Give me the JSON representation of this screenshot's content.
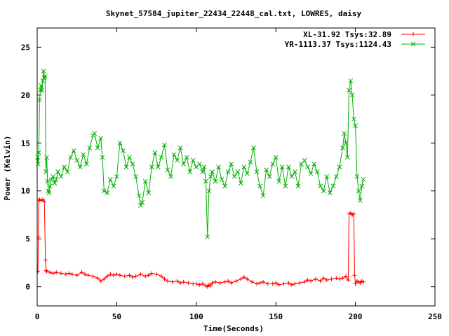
{
  "chart_data": {
    "type": "line",
    "title": "Skynet_57584_jupiter_22434_22448_cal.txt, LOWRES, daisy",
    "xlabel": "Time(Seconds)",
    "ylabel": "Power (Kelvin)",
    "xlim": [
      0,
      250
    ],
    "ylim": [
      -2,
      27
    ],
    "xticks": [
      0,
      50,
      100,
      150,
      200,
      250
    ],
    "yticks": [
      0,
      5,
      10,
      15,
      20,
      25
    ],
    "grid": false,
    "legend_position": "top-right",
    "series": [
      {
        "name": "XL-31.92 Tsys:32.89",
        "color": "#ff0000",
        "marker": "plus",
        "x": [
          0.5,
          0.7,
          1.0,
          1.5,
          2.5,
          3.5,
          4.5,
          5.2,
          5.6,
          6.0,
          8,
          10,
          12,
          15,
          18,
          20,
          22,
          25,
          28,
          30,
          32,
          35,
          38,
          40,
          42,
          44,
          46,
          48,
          50,
          52,
          55,
          58,
          60,
          62,
          65,
          68,
          70,
          72,
          75,
          78,
          80,
          82,
          85,
          88,
          90,
          92,
          95,
          98,
          100,
          102,
          104,
          106,
          107,
          108,
          109,
          110,
          112,
          115,
          118,
          120,
          122,
          125,
          128,
          130,
          132,
          135,
          138,
          140,
          142,
          145,
          148,
          150,
          152,
          155,
          158,
          160,
          162,
          165,
          168,
          170,
          172,
          175,
          178,
          180,
          182,
          185,
          188,
          190,
          192,
          194,
          195.5,
          196,
          197,
          198,
          199,
          199.5,
          200,
          201,
          202,
          203,
          204,
          205
        ],
        "y": [
          1.6,
          5.2,
          9.0,
          9.1,
          9.0,
          9.1,
          8.9,
          2.8,
          1.7,
          1.6,
          1.5,
          1.4,
          1.5,
          1.4,
          1.3,
          1.4,
          1.3,
          1.2,
          1.5,
          1.3,
          1.2,
          1.1,
          0.9,
          0.6,
          0.8,
          1.1,
          1.3,
          1.2,
          1.3,
          1.2,
          1.1,
          1.2,
          1.0,
          1.1,
          1.3,
          1.1,
          1.2,
          1.4,
          1.3,
          1.1,
          0.8,
          0.6,
          0.5,
          0.6,
          0.4,
          0.5,
          0.4,
          0.3,
          0.3,
          0.2,
          0.3,
          0.1,
          0.0,
          0.2,
          0.1,
          0.4,
          0.5,
          0.4,
          0.5,
          0.6,
          0.4,
          0.6,
          0.8,
          1.0,
          0.8,
          0.5,
          0.3,
          0.4,
          0.5,
          0.3,
          0.3,
          0.4,
          0.2,
          0.3,
          0.4,
          0.2,
          0.3,
          0.4,
          0.5,
          0.7,
          0.6,
          0.8,
          0.6,
          0.9,
          0.7,
          0.8,
          0.9,
          0.8,
          0.9,
          1.1,
          0.7,
          7.6,
          7.7,
          7.5,
          7.6,
          1.2,
          0.3,
          0.6,
          0.5,
          0.4,
          0.6,
          0.5
        ]
      },
      {
        "name": "YR-1113.37 Tsys:1124.43",
        "color": "#00b000",
        "marker": "cross",
        "x": [
          0.3,
          0.6,
          1.0,
          1.5,
          2.0,
          2.5,
          3.0,
          3.5,
          4.0,
          4.5,
          5.0,
          5.5,
          6.0,
          6.5,
          7.0,
          7.5,
          8.0,
          9.0,
          10,
          11,
          12,
          13,
          15,
          17,
          19,
          21,
          23,
          25,
          27,
          29,
          31,
          33,
          35,
          36,
          38,
          40,
          41,
          42,
          44,
          46,
          48,
          50,
          52,
          54,
          56,
          58,
          60,
          62,
          64,
          65,
          66,
          68,
          70,
          72,
          74,
          76,
          78,
          80,
          82,
          84,
          86,
          88,
          90,
          92,
          94,
          96,
          98,
          100,
          102,
          104,
          105,
          106,
          107,
          108,
          109,
          110,
          112,
          114,
          116,
          118,
          120,
          122,
          124,
          126,
          128,
          130,
          132,
          134,
          136,
          138,
          140,
          142,
          144,
          146,
          148,
          150,
          152,
          154,
          156,
          158,
          160,
          162,
          164,
          166,
          168,
          170,
          172,
          174,
          176,
          178,
          180,
          182,
          184,
          186,
          188,
          190,
          192,
          193,
          194,
          195,
          196,
          197,
          198,
          199,
          200,
          201,
          202,
          203,
          204,
          205
        ],
        "y": [
          13.5,
          12.8,
          14.0,
          19.5,
          20.5,
          21.0,
          20.5,
          21.5,
          22.5,
          21.8,
          22.0,
          12.0,
          13.5,
          11.0,
          10.0,
          9.8,
          10.5,
          11.2,
          11.5,
          10.8,
          11.2,
          12.0,
          11.5,
          12.5,
          12.0,
          13.5,
          14.2,
          13.2,
          12.5,
          13.8,
          12.8,
          14.5,
          15.8,
          16.0,
          14.5,
          15.5,
          13.5,
          10.0,
          9.8,
          11.2,
          10.5,
          11.5,
          15.0,
          14.2,
          12.5,
          13.5,
          12.8,
          11.5,
          9.5,
          8.5,
          8.8,
          11.0,
          9.8,
          12.5,
          14.0,
          12.5,
          13.5,
          14.8,
          12.2,
          11.5,
          13.8,
          13.2,
          14.5,
          12.8,
          13.5,
          12.0,
          13.2,
          12.5,
          12.8,
          12.0,
          12.5,
          11.0,
          5.2,
          10.0,
          11.5,
          12.0,
          11.0,
          12.5,
          11.2,
          10.5,
          12.0,
          12.8,
          11.5,
          12.0,
          10.8,
          12.5,
          11.8,
          13.0,
          14.5,
          12.0,
          10.5,
          9.5,
          12.2,
          11.5,
          12.8,
          13.5,
          11.0,
          12.5,
          10.5,
          12.5,
          11.5,
          12.0,
          10.5,
          12.8,
          13.2,
          12.5,
          11.8,
          12.8,
          12.0,
          10.5,
          10.0,
          11.5,
          9.8,
          10.5,
          11.5,
          12.5,
          14.5,
          16.0,
          15.0,
          13.5,
          20.5,
          21.5,
          20.0,
          17.5,
          16.8,
          11.5,
          10.0,
          9.0,
          10.5,
          11.2
        ]
      }
    ]
  }
}
